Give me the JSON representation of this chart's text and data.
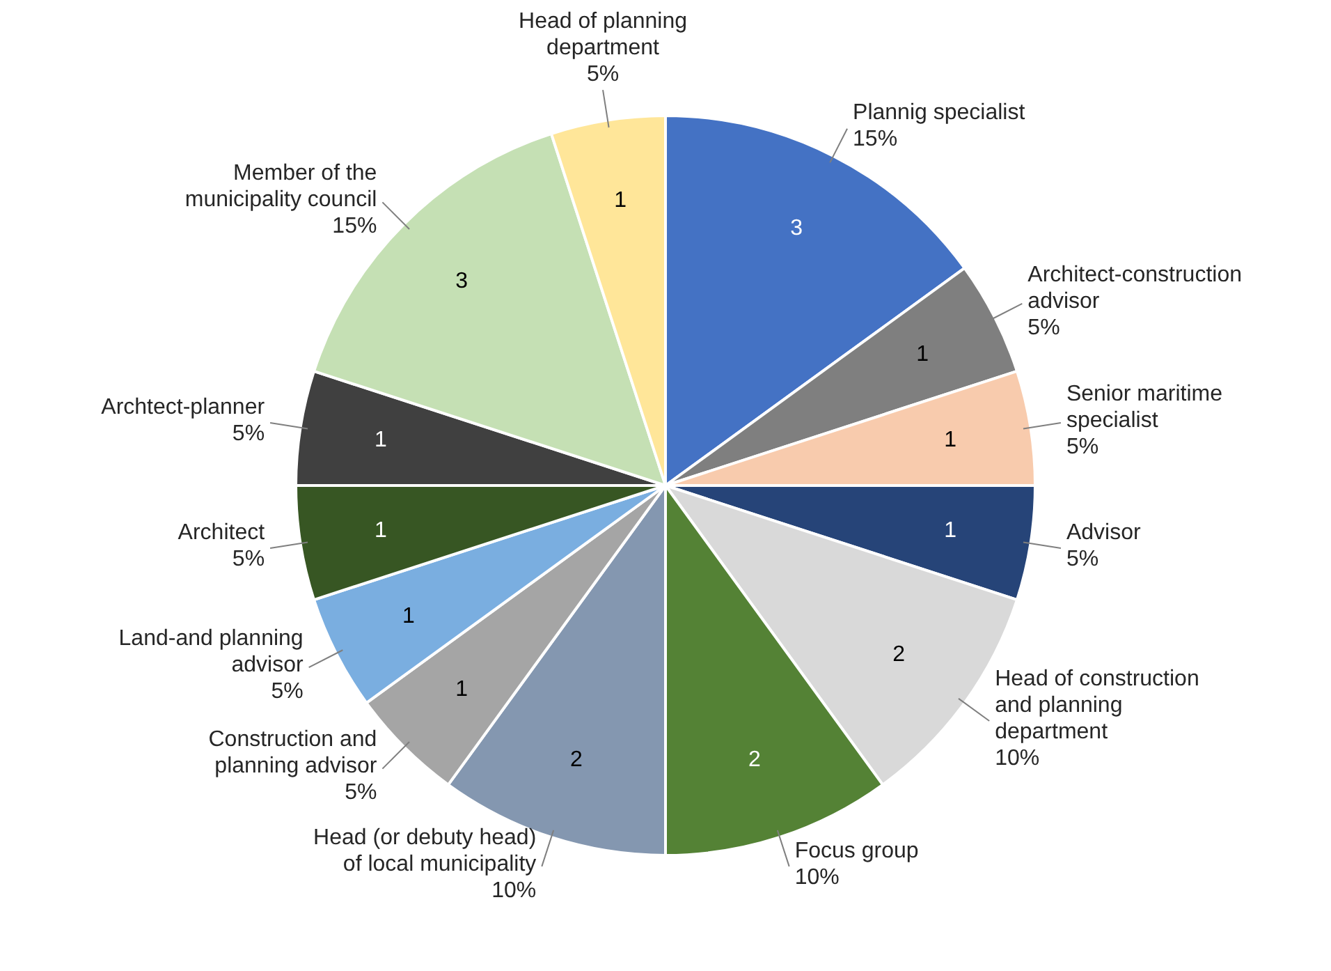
{
  "chart_data": {
    "type": "pie",
    "categories": [
      "Plannig specialist",
      "Architect-construction advisor",
      "Senior maritime specialist",
      "Advisor",
      "Head of construction and planning department",
      "Focus group",
      "Head (or debuty head) of local municipality",
      "Construction and planning advisor",
      "Land-and planning advisor",
      "Architect",
      "Archtect-planner",
      "Member of the municipality council",
      "Head of planning department"
    ],
    "values": [
      15,
      5,
      5,
      5,
      10,
      10,
      10,
      5,
      5,
      5,
      5,
      15,
      5
    ],
    "value_labels": [
      "15%",
      "5%",
      "5%",
      "5%",
      "10%",
      "10%",
      "10%",
      "5%",
      "5%",
      "5%",
      "5%",
      "15%",
      "5%"
    ],
    "colors": [
      "#4472c4",
      "#7f7f7f",
      "#f8cbad",
      "#264478",
      "#d9d9d9",
      "#548235",
      "#8497b0",
      "#a5a5a5",
      "#7aaee0",
      "#375623",
      "#404040",
      "#c5e0b4",
      "#ffe699"
    ],
    "annotations": [
      "3",
      "1",
      "1",
      "1",
      "2",
      "2",
      "2",
      "1",
      "1",
      "1",
      "1",
      "3",
      "1"
    ],
    "legend": false
  }
}
